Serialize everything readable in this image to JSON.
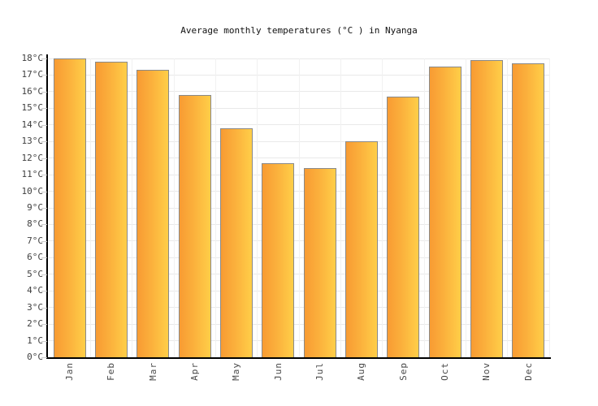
{
  "chart_data": {
    "type": "bar",
    "title": "Average monthly temperatures (°C ) in Nyanga",
    "categories": [
      "Jan",
      "Feb",
      "Mar",
      "Apr",
      "May",
      "Jun",
      "Jul",
      "Aug",
      "Sep",
      "Oct",
      "Nov",
      "Dec"
    ],
    "values": [
      18.0,
      17.8,
      17.3,
      15.8,
      13.8,
      11.7,
      11.4,
      13.0,
      15.7,
      17.5,
      17.9,
      17.7
    ],
    "xlabel": "",
    "ylabel": "",
    "ylim": [
      0,
      18
    ],
    "ytick_step": 1,
    "ytick_suffix": "°C",
    "grid": "on",
    "legend": "none",
    "bar_orientation": "vertical",
    "x_label_rotation_deg": -90,
    "colors": {
      "bar_gradient_left": "#f89b33",
      "bar_gradient_right": "#ffce48",
      "bar_border": "#898989",
      "axis_line": "#000000",
      "h_gridline": "#e9e9e9",
      "v_gridline": "#f1f1f1",
      "tick_mark": "#cccccc",
      "axis_text": "#404040",
      "title_text": "#111111",
      "background": "#ffffff"
    }
  }
}
